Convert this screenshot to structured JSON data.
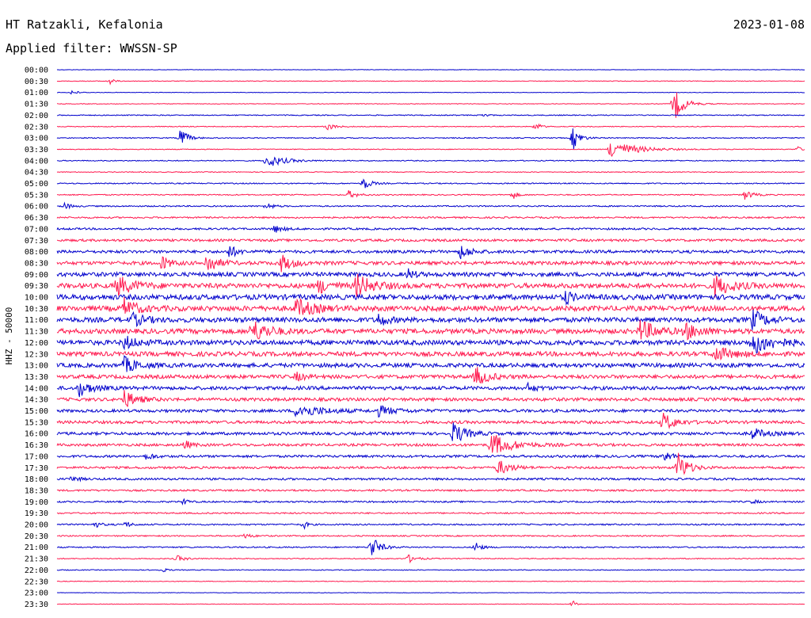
{
  "header": {
    "station": "HT Ratzakli, Kefalonia",
    "date": "2023-01-08",
    "filter": "Applied filter: WWSSN-SP"
  },
  "chart_data": {
    "type": "line",
    "title": "HT Ratzakli, Kefalonia",
    "date": "2023-01-08",
    "filter": "Applied filter: WWSSN-SP",
    "ylabel": "HHZ - 50000",
    "row_labels": [
      "00:00",
      "00:30",
      "01:00",
      "01:30",
      "02:00",
      "02:30",
      "03:00",
      "03:30",
      "04:00",
      "04:30",
      "05:00",
      "05:30",
      "06:00",
      "06:30",
      "07:00",
      "07:30",
      "08:00",
      "08:30",
      "09:00",
      "09:30",
      "10:00",
      "10:30",
      "11:00",
      "11:30",
      "12:00",
      "12:30",
      "13:00",
      "13:30",
      "14:00",
      "14:30",
      "15:00",
      "15:30",
      "16:00",
      "16:30",
      "17:00",
      "17:30",
      "18:00",
      "18:30",
      "19:00",
      "19:30",
      "20:00",
      "20:30",
      "21:00",
      "21:30",
      "22:00",
      "22:30",
      "23:00",
      "23:30"
    ],
    "row_noise": [
      0.3,
      0.4,
      0.3,
      0.4,
      0.6,
      0.5,
      0.6,
      0.5,
      0.6,
      0.5,
      0.7,
      0.7,
      0.8,
      1.0,
      1.2,
      1.5,
      1.8,
      2.2,
      2.6,
      3.0,
      3.2,
      3.2,
      3.0,
      3.0,
      3.0,
      2.8,
      2.6,
      2.3,
      2.2,
      2.0,
      1.8,
      1.8,
      1.8,
      1.6,
      1.5,
      1.4,
      1.3,
      1.1,
      1.0,
      0.9,
      0.9,
      0.8,
      0.8,
      0.6,
      0.5,
      0.4,
      0.3,
      0.3
    ],
    "events": [
      {
        "row": 1,
        "t": 0.07,
        "amp": 5,
        "dur": 0.005
      },
      {
        "row": 2,
        "t": 0.02,
        "amp": 4,
        "dur": 0.006
      },
      {
        "row": 3,
        "t": 0.825,
        "amp": 22,
        "dur": 0.012
      },
      {
        "row": 4,
        "t": 0.57,
        "amp": 3,
        "dur": 0.005
      },
      {
        "row": 5,
        "t": 0.36,
        "amp": 5,
        "dur": 0.01
      },
      {
        "row": 5,
        "t": 0.64,
        "amp": 6,
        "dur": 0.006
      },
      {
        "row": 6,
        "t": 0.165,
        "amp": 14,
        "dur": 0.008
      },
      {
        "row": 6,
        "t": 0.69,
        "amp": 16,
        "dur": 0.008
      },
      {
        "row": 7,
        "t": 0.74,
        "amp": 12,
        "dur": 0.03
      },
      {
        "row": 7,
        "t": 0.99,
        "amp": 4,
        "dur": 0.005
      },
      {
        "row": 8,
        "t": 0.28,
        "amp": 9,
        "dur": 0.02
      },
      {
        "row": 10,
        "t": 0.41,
        "amp": 9,
        "dur": 0.008
      },
      {
        "row": 11,
        "t": 0.39,
        "amp": 5,
        "dur": 0.01
      },
      {
        "row": 11,
        "t": 0.61,
        "amp": 6,
        "dur": 0.005
      },
      {
        "row": 11,
        "t": 0.92,
        "amp": 6,
        "dur": 0.01
      },
      {
        "row": 12,
        "t": 0.01,
        "amp": 4,
        "dur": 0.008
      },
      {
        "row": 12,
        "t": 0.28,
        "amp": 5,
        "dur": 0.008
      },
      {
        "row": 14,
        "t": 0.29,
        "amp": 5,
        "dur": 0.01
      },
      {
        "row": 16,
        "t": 0.23,
        "amp": 8,
        "dur": 0.01
      },
      {
        "row": 16,
        "t": 0.54,
        "amp": 9,
        "dur": 0.012
      },
      {
        "row": 17,
        "t": 0.14,
        "amp": 9,
        "dur": 0.01
      },
      {
        "row": 17,
        "t": 0.2,
        "amp": 14,
        "dur": 0.012
      },
      {
        "row": 17,
        "t": 0.3,
        "amp": 10,
        "dur": 0.015
      },
      {
        "row": 18,
        "t": 0.47,
        "amp": 6,
        "dur": 0.008
      },
      {
        "row": 19,
        "t": 0.08,
        "amp": 12,
        "dur": 0.02
      },
      {
        "row": 19,
        "t": 0.35,
        "amp": 9,
        "dur": 0.015
      },
      {
        "row": 19,
        "t": 0.4,
        "amp": 14,
        "dur": 0.02
      },
      {
        "row": 19,
        "t": 0.88,
        "amp": 13,
        "dur": 0.02
      },
      {
        "row": 20,
        "t": 0.68,
        "amp": 9,
        "dur": 0.008
      },
      {
        "row": 21,
        "t": 0.09,
        "amp": 12,
        "dur": 0.015
      },
      {
        "row": 21,
        "t": 0.32,
        "amp": 12,
        "dur": 0.02
      },
      {
        "row": 22,
        "t": 0.1,
        "amp": 8,
        "dur": 0.015
      },
      {
        "row": 22,
        "t": 0.43,
        "amp": 8,
        "dur": 0.01
      },
      {
        "row": 22,
        "t": 0.93,
        "amp": 12,
        "dur": 0.015
      },
      {
        "row": 23,
        "t": 0.26,
        "amp": 14,
        "dur": 0.02
      },
      {
        "row": 23,
        "t": 0.78,
        "amp": 13,
        "dur": 0.02
      },
      {
        "row": 23,
        "t": 0.84,
        "amp": 9,
        "dur": 0.02
      },
      {
        "row": 24,
        "t": 0.09,
        "amp": 8,
        "dur": 0.015
      },
      {
        "row": 24,
        "t": 0.93,
        "amp": 14,
        "dur": 0.025
      },
      {
        "row": 25,
        "t": 0.88,
        "amp": 9,
        "dur": 0.02
      },
      {
        "row": 26,
        "t": 0.09,
        "amp": 10,
        "dur": 0.015
      },
      {
        "row": 27,
        "t": 0.32,
        "amp": 5,
        "dur": 0.01
      },
      {
        "row": 27,
        "t": 0.56,
        "amp": 12,
        "dur": 0.015
      },
      {
        "row": 28,
        "t": 0.03,
        "amp": 10,
        "dur": 0.015
      },
      {
        "row": 28,
        "t": 0.63,
        "amp": 5,
        "dur": 0.01
      },
      {
        "row": 29,
        "t": 0.09,
        "amp": 11,
        "dur": 0.015
      },
      {
        "row": 30,
        "t": 0.32,
        "amp": 9,
        "dur": 0.03
      },
      {
        "row": 30,
        "t": 0.43,
        "amp": 6,
        "dur": 0.02
      },
      {
        "row": 31,
        "t": 0.81,
        "amp": 12,
        "dur": 0.015
      },
      {
        "row": 32,
        "t": 0.53,
        "amp": 14,
        "dur": 0.015
      },
      {
        "row": 32,
        "t": 0.93,
        "amp": 7,
        "dur": 0.015
      },
      {
        "row": 33,
        "t": 0.58,
        "amp": 15,
        "dur": 0.025
      },
      {
        "row": 33,
        "t": 0.17,
        "amp": 6,
        "dur": 0.008
      },
      {
        "row": 34,
        "t": 0.12,
        "amp": 5,
        "dur": 0.008
      },
      {
        "row": 34,
        "t": 0.81,
        "amp": 8,
        "dur": 0.01
      },
      {
        "row": 35,
        "t": 0.83,
        "amp": 20,
        "dur": 0.012
      },
      {
        "row": 35,
        "t": 0.59,
        "amp": 10,
        "dur": 0.015
      },
      {
        "row": 36,
        "t": 0.02,
        "amp": 4,
        "dur": 0.008
      },
      {
        "row": 38,
        "t": 0.17,
        "amp": 6,
        "dur": 0.004
      },
      {
        "row": 38,
        "t": 0.93,
        "amp": 3,
        "dur": 0.006
      },
      {
        "row": 40,
        "t": 0.05,
        "amp": 4,
        "dur": 0.008
      },
      {
        "row": 40,
        "t": 0.09,
        "amp": 4,
        "dur": 0.008
      },
      {
        "row": 40,
        "t": 0.33,
        "amp": 6,
        "dur": 0.004
      },
      {
        "row": 41,
        "t": 0.25,
        "amp": 3,
        "dur": 0.01
      },
      {
        "row": 42,
        "t": 0.42,
        "amp": 16,
        "dur": 0.01
      },
      {
        "row": 42,
        "t": 0.56,
        "amp": 8,
        "dur": 0.006
      },
      {
        "row": 43,
        "t": 0.16,
        "amp": 4,
        "dur": 0.01
      },
      {
        "row": 43,
        "t": 0.47,
        "amp": 5,
        "dur": 0.01
      },
      {
        "row": 44,
        "t": 0.14,
        "amp": 3,
        "dur": 0.006
      },
      {
        "row": 47,
        "t": 0.69,
        "amp": 6,
        "dur": 0.003
      }
    ]
  },
  "colors": {
    "even_rows": "#0000cc",
    "odd_rows": "#ff1a4f",
    "text": "#000000",
    "background": "#ffffff"
  }
}
